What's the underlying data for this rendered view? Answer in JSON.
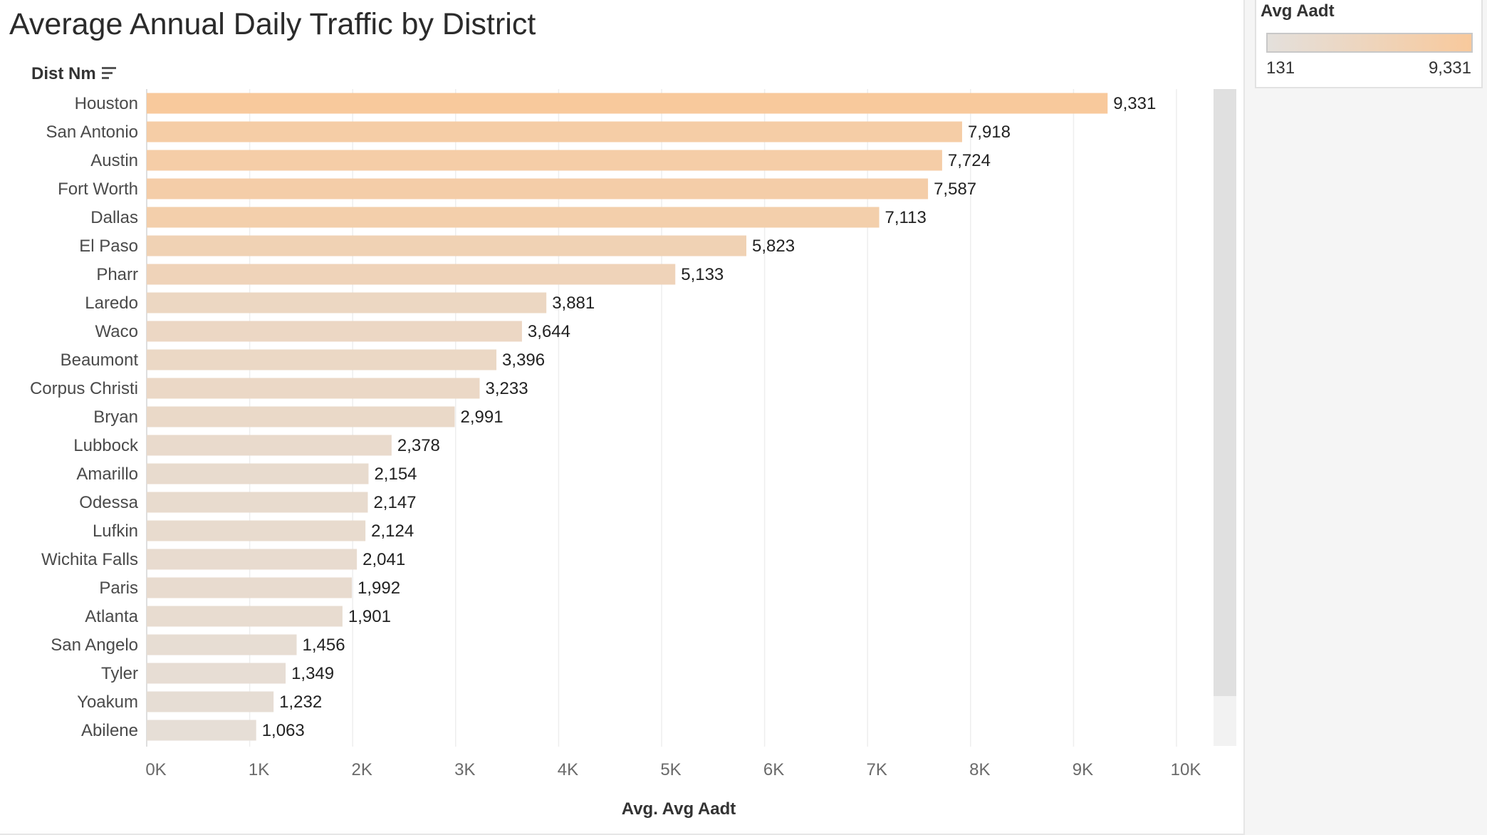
{
  "title": "Average Annual Daily Traffic by District",
  "row_header": "Dist Nm",
  "legend": {
    "title": "Avg Aadt",
    "min_label": "131",
    "max_label": "9,331",
    "color_low": "#e4e0dc",
    "color_high": "#f8c99c"
  },
  "chart_data": {
    "type": "bar",
    "orientation": "horizontal",
    "categories": [
      "Houston",
      "San Antonio",
      "Austin",
      "Fort Worth",
      "Dallas",
      "El Paso",
      "Pharr",
      "Laredo",
      "Waco",
      "Beaumont",
      "Corpus Christi",
      "Bryan",
      "Lubbock",
      "Amarillo",
      "Odessa",
      "Lufkin",
      "Wichita Falls",
      "Paris",
      "Atlanta",
      "San Angelo",
      "Tyler",
      "Yoakum",
      "Abilene"
    ],
    "values": [
      9331,
      7918,
      7724,
      7587,
      7113,
      5823,
      5133,
      3881,
      3644,
      3396,
      3233,
      2991,
      2378,
      2154,
      2147,
      2124,
      2041,
      1992,
      1901,
      1456,
      1349,
      1232,
      1063
    ],
    "value_labels": [
      "9,331",
      "7,918",
      "7,724",
      "7,587",
      "7,113",
      "5,823",
      "5,133",
      "3,881",
      "3,644",
      "3,396",
      "3,233",
      "2,991",
      "2,378",
      "2,154",
      "2,147",
      "2,124",
      "2,041",
      "1,992",
      "1,901",
      "1,456",
      "1,349",
      "1,232",
      "1,063"
    ],
    "xlabel": "Avg. Avg Aadt",
    "ylabel": "Dist Nm",
    "xlim": [
      0,
      10000
    ],
    "x_ticks": [
      0,
      1000,
      2000,
      3000,
      4000,
      5000,
      6000,
      7000,
      8000,
      9000,
      10000
    ],
    "x_tick_labels": [
      "0K",
      "1K",
      "2K",
      "3K",
      "4K",
      "5K",
      "6K",
      "7K",
      "8K",
      "9K",
      "10K"
    ],
    "color_range": [
      131,
      9331
    ],
    "grid": "vertical"
  }
}
